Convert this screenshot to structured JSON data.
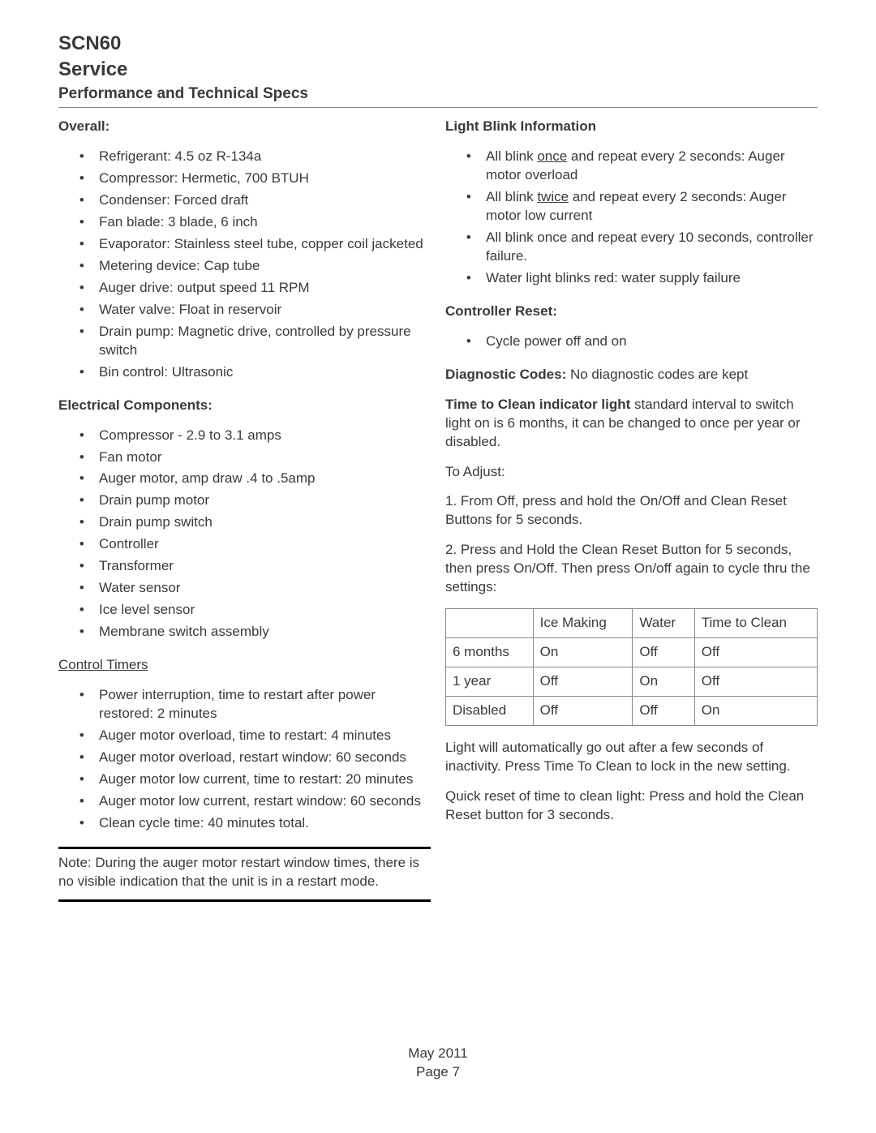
{
  "header": {
    "model": "SCN60",
    "service": "Service",
    "subtitle": "Performance and Technical Specs"
  },
  "left": {
    "overall_head": "Overall:",
    "overall": [
      "Refrigerant: 4.5 oz R-134a",
      "Compressor: Hermetic, 700 BTUH",
      "Condenser: Forced draft",
      "Fan blade: 3 blade, 6 inch",
      "Evaporator: Stainless steel tube, copper coil jacketed",
      "Metering device: Cap tube",
      "Auger drive: output speed 11 RPM",
      "Water valve: Float in reservoir",
      "Drain pump: Magnetic drive, controlled by pressure switch",
      "Bin control: Ultrasonic"
    ],
    "elec_head": "Electrical Components:",
    "elec": [
      "Compressor - 2.9 to 3.1 amps",
      "Fan motor",
      "Auger motor, amp draw .4 to .5amp",
      "Drain pump motor",
      "Drain pump switch",
      "Controller",
      "Transformer",
      "Water sensor",
      "Ice level sensor",
      "Membrane switch assembly"
    ],
    "timers_head": "Control Timers",
    "timers": [
      "Power interruption, time to restart after power restored: 2 minutes",
      "Auger motor overload, time to restart: 4 minutes",
      "Auger motor overload, restart window: 60 seconds",
      "Auger motor low current, time to restart: 20 minutes",
      "Auger motor low current, restart window: 60 seconds",
      "Clean cycle time: 40 minutes total."
    ],
    "note": "Note: During the auger motor restart window times, there is no visible indication that the unit is in a restart mode."
  },
  "right": {
    "blink_head": "Light Blink Information",
    "blink_pre_1a": "All blink ",
    "blink_u1": "once",
    "blink_post_1a": " and repeat every 2 seconds: Auger motor overload",
    "blink_pre_2a": "All blink ",
    "blink_u2": "twice",
    "blink_post_2a": " and repeat every 2 seconds: Auger motor low current",
    "blink_3": "All blink once and repeat every 10 seconds, controller failure.",
    "blink_4": "Water light blinks red: water supply failure",
    "reset_head": "Controller Reset:",
    "reset_item": "Cycle power off and on",
    "diag_label": "Diagnostic Codes:",
    "diag_text": " No diagnostic codes are kept",
    "ttc_label": "Time to Clean indicator light",
    "ttc_text": " standard interval to switch light on is 6 months, it can be changed to once per year or disabled.",
    "adjust_label": "To Adjust:",
    "step1": "1. From Off, press and hold the On/Off and Clean Reset Buttons for 5 seconds.",
    "step2": "2. Press and Hold the Clean Reset Button for 5 seconds, then press On/Off. Then press On/off again to cycle thru the settings:",
    "table": {
      "headers": [
        "",
        "Ice Making",
        "Water",
        "Time to Clean"
      ],
      "rows": [
        [
          "6 months",
          "On",
          "Off",
          "Off"
        ],
        [
          "1 year",
          "Off",
          "On",
          "Off"
        ],
        [
          "Disabled",
          "Off",
          "Off",
          "On"
        ]
      ]
    },
    "after1": "Light will automatically go out after a few seconds of inactivity. Press Time To Clean to lock in the new setting.",
    "after2": "Quick reset of time to clean light: Press and hold the Clean Reset button for 3 seconds."
  },
  "footer": {
    "date": "May 2011",
    "page": "Page 7"
  }
}
